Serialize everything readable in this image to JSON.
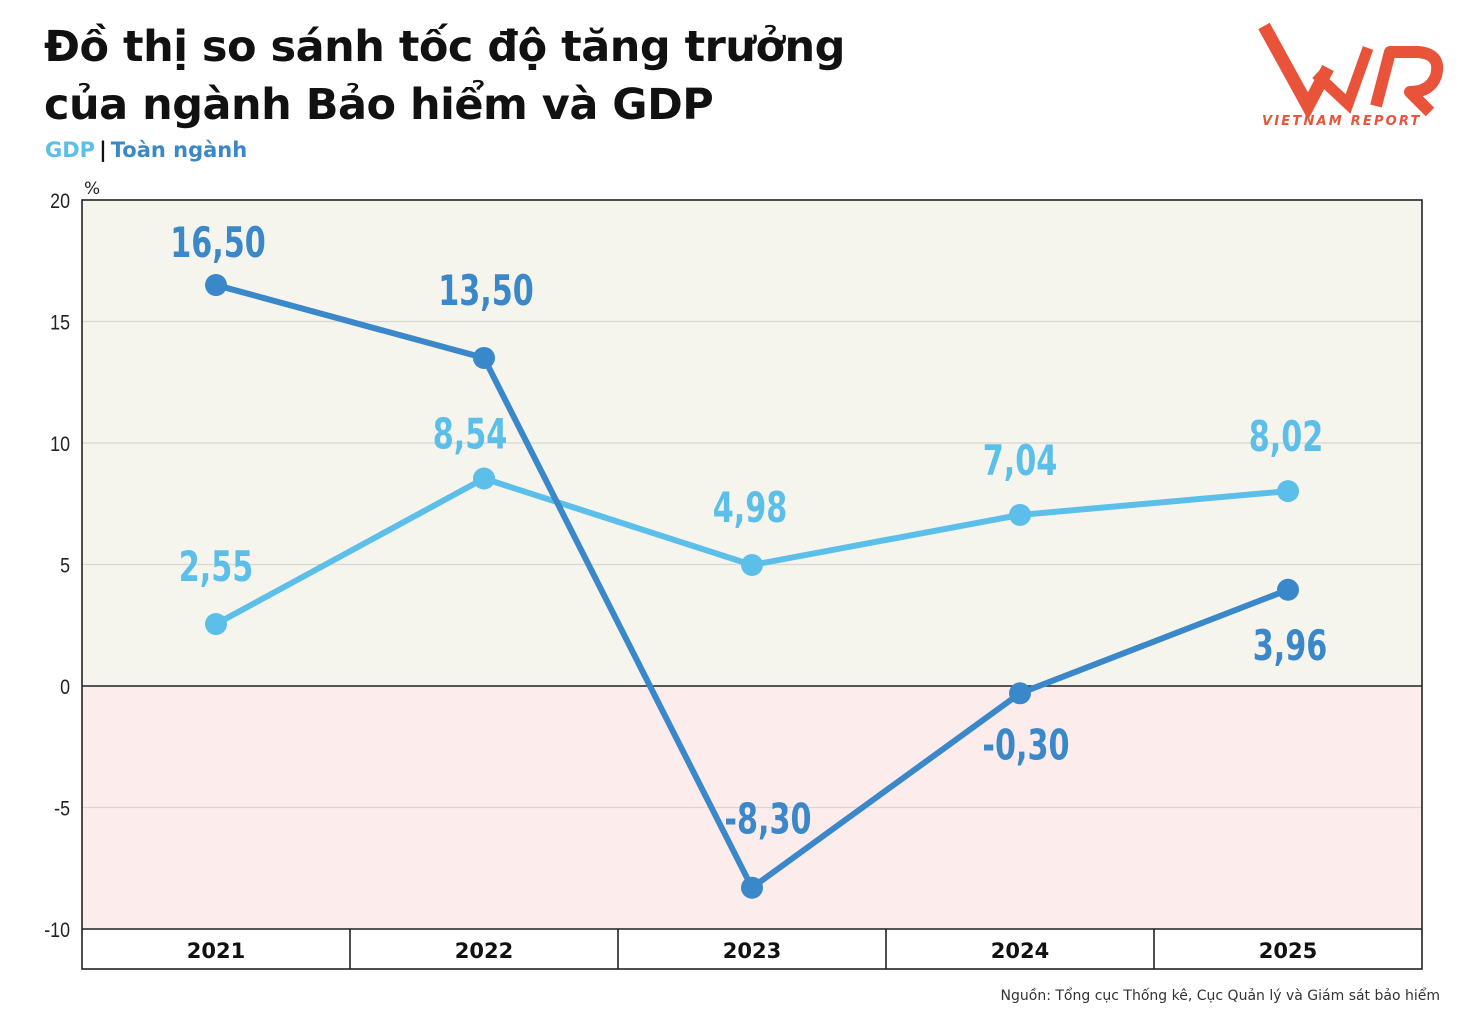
{
  "header": {
    "title_line1": "Đồ thị so sánh tốc độ tăng trưởng",
    "title_line2": "của ngành Bảo hiểm và GDP",
    "legend_gdp": "GDP",
    "legend_separator": "|",
    "legend_industry": "Toàn ngành"
  },
  "logo": {
    "brand": "VNR",
    "subtitle": "VIETNAM REPORT",
    "color": "#e8533a"
  },
  "source": "Nguồn: Tổng cục Thống kê, Cục Quản lý và Giám sát bảo hiểm",
  "chart_data": {
    "type": "line",
    "unit_label": "%",
    "categories": [
      "2021",
      "2022",
      "2023",
      "2024",
      "2025"
    ],
    "y_ticks": [
      20,
      15,
      10,
      5,
      0,
      -5,
      -10
    ],
    "ylim": [
      -10,
      20
    ],
    "grid": true,
    "series": [
      {
        "name": "GDP",
        "color": "#5bbfea",
        "values": [
          2.55,
          8.54,
          4.98,
          7.04,
          8.02
        ],
        "labels": [
          "2,55",
          "8,54",
          "4,98",
          "7,04",
          "8,02"
        ]
      },
      {
        "name": "Toàn ngành",
        "color": "#3a88c9",
        "values": [
          16.5,
          13.5,
          -8.3,
          -0.3,
          3.96
        ],
        "labels": [
          "16,50",
          "13,50",
          "-8,30",
          "-0,30",
          "3,96"
        ]
      }
    ],
    "background": {
      "positive": "#f5f5ed",
      "negative": "#fdecec"
    }
  }
}
